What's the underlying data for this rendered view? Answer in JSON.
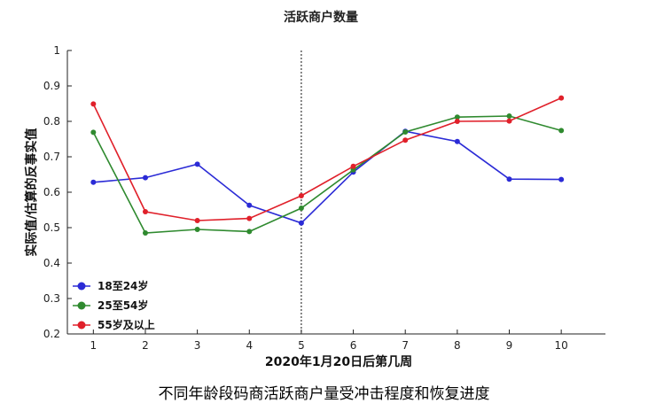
{
  "chart_data": {
    "type": "line",
    "title": "活跃商户数量",
    "xlabel": "2020年1月20日后第几周",
    "ylabel": "实际值/估算的反事实值",
    "x": [
      1,
      2,
      3,
      4,
      5,
      6,
      7,
      8,
      9,
      10
    ],
    "ylim": [
      0.2,
      1.0
    ],
    "yticks": [
      "0.2",
      "0.3",
      "0.4",
      "0.5",
      "0.6",
      "0.7",
      "0.8",
      "0.9",
      "1"
    ],
    "xticks": [
      "1",
      "2",
      "3",
      "4",
      "5",
      "6",
      "7",
      "8",
      "9",
      "10"
    ],
    "grid": false,
    "legend_position": "bottom-left",
    "vline": {
      "x": 5,
      "style": "dotted"
    },
    "series": [
      {
        "name": "18至24岁",
        "color": "#2b2bd6",
        "values": [
          0.628,
          0.641,
          0.679,
          0.563,
          0.513,
          0.657,
          0.772,
          0.743,
          0.637,
          0.636
        ]
      },
      {
        "name": "25至54岁",
        "color": "#2f8a2f",
        "values": [
          0.769,
          0.485,
          0.495,
          0.489,
          0.555,
          0.663,
          0.77,
          0.812,
          0.815,
          0.774
        ]
      },
      {
        "name": "55岁及以上",
        "color": "#e0202a",
        "values": [
          0.849,
          0.545,
          0.52,
          0.526,
          0.59,
          0.673,
          0.747,
          0.8,
          0.801,
          0.866
        ]
      }
    ]
  },
  "caption": "不同年龄段码商活跃商户量受冲击程度和恢复进度"
}
